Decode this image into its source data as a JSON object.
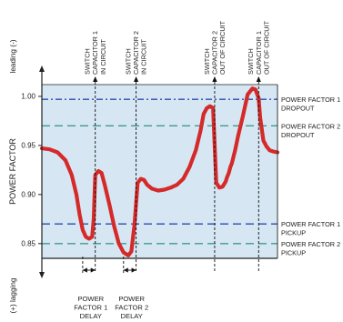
{
  "chart_data": {
    "type": "line",
    "ylabel": "POWER FACTOR",
    "axis_top_label": "leading (-)",
    "axis_bottom_label": "(+) lagging",
    "y_ticks": [
      "1.00",
      "0.95",
      "0.90",
      "0.85"
    ],
    "ylim": [
      0.835,
      1.012
    ],
    "grid": false,
    "background_color": "#d6e7f3",
    "series": [
      {
        "color": "#d42a2a",
        "x": [
          0,
          10,
          20,
          30,
          38,
          44,
          48,
          52,
          56,
          60,
          64,
          66,
          68,
          72,
          76,
          80,
          86,
          92,
          98,
          104,
          110,
          114,
          118,
          122,
          126,
          130,
          134,
          140,
          148,
          156,
          164,
          172,
          180,
          188,
          196,
          202,
          206,
          210,
          214,
          218,
          222,
          226,
          230,
          234,
          236,
          238,
          240,
          242,
          246,
          250,
          256,
          262,
          268,
          272,
          276,
          278,
          282,
          286,
          288,
          290,
          294,
          300
        ],
        "y": [
          0.947,
          0.946,
          0.943,
          0.935,
          0.92,
          0.9,
          0.88,
          0.864,
          0.857,
          0.855,
          0.857,
          0.875,
          0.92,
          0.924,
          0.922,
          0.91,
          0.89,
          0.868,
          0.85,
          0.841,
          0.838,
          0.842,
          0.87,
          0.912,
          0.916,
          0.915,
          0.91,
          0.906,
          0.904,
          0.905,
          0.907,
          0.91,
          0.916,
          0.928,
          0.945,
          0.965,
          0.982,
          0.988,
          0.99,
          0.988,
          0.912,
          0.907,
          0.908,
          0.913,
          0.918,
          0.922,
          0.928,
          0.932,
          0.945,
          0.96,
          0.98,
          1.002,
          1.008,
          1.007,
          0.998,
          0.978,
          0.955,
          0.949,
          0.947,
          0.945,
          0.944,
          0.943
        ]
      }
    ],
    "reference_lines": [
      {
        "y": 0.997,
        "style": "dash-dot",
        "color": "#2a4bb0",
        "label": [
          "POWER FACTOR 1",
          "DROPOUT"
        ]
      },
      {
        "y": 0.97,
        "style": "dash",
        "color": "#3f9a8a",
        "label": [
          "POWER FACTOR 2",
          "DROPOUT"
        ]
      },
      {
        "y": 0.87,
        "style": "dash",
        "color": "#2a4bb0",
        "label": [
          "POWER FACTOR 1",
          "PICKUP"
        ]
      },
      {
        "y": 0.85,
        "style": "dash",
        "color": "#3f9a8a",
        "label": [
          "POWER FACTOR 2",
          "PICKUP"
        ]
      }
    ],
    "top_annotations": [
      {
        "x": 68,
        "lines": [
          "SWITCH",
          "CAPACITOR 1",
          "IN CIRCUIT"
        ]
      },
      {
        "x": 120,
        "lines": [
          "SWITCH",
          "CAPACITOR 2",
          "IN CIRCUIT"
        ]
      },
      {
        "x": 220,
        "lines": [
          "SWITCH",
          "CAPACITOR 2",
          "OUT OF CIRCUIT"
        ]
      },
      {
        "x": 276,
        "lines": [
          "SWITCH",
          "CAPACITOR 1",
          "OUT OF CIRCUIT"
        ]
      }
    ],
    "bottom_annotations": [
      {
        "x_start": 52,
        "x_end": 68,
        "lines": [
          "POWER",
          "FACTOR 1",
          "DELAY"
        ]
      },
      {
        "x_start": 104,
        "x_end": 120,
        "lines": [
          "POWER",
          "FACTOR 2",
          "DELAY"
        ]
      }
    ]
  }
}
